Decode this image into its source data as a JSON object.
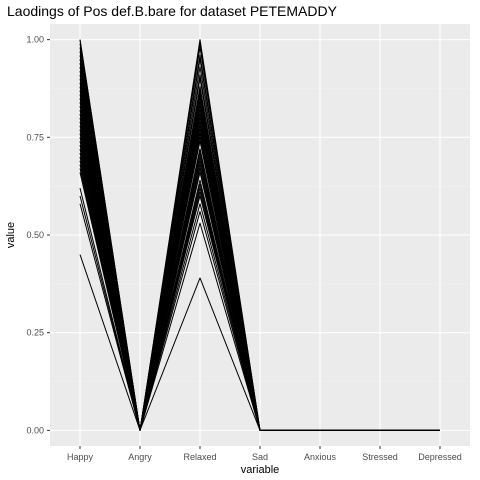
{
  "chart_data": {
    "type": "line",
    "title": "Laodings of Pos def.B.bare for dataset PETEMADDY",
    "xlabel": "variable",
    "ylabel": "value",
    "categories": [
      "Happy",
      "Angry",
      "Relaxed",
      "Sad",
      "Anxious",
      "Stressed",
      "Depressed"
    ],
    "ylim": [
      -0.04,
      1.04
    ],
    "yticks": [
      0.0,
      0.25,
      0.5,
      0.75,
      1.0
    ],
    "ytick_labels": [
      "0.00",
      "0.25",
      "0.50",
      "0.75",
      "1.00"
    ],
    "grid": true,
    "series": [
      {
        "values": [
          0.45,
          0,
          0.39,
          0,
          0,
          0,
          0
        ]
      },
      {
        "values": [
          0.58,
          0,
          0.53,
          0,
          0,
          0,
          0
        ]
      },
      {
        "values": [
          0.6,
          0,
          0.56,
          0,
          0,
          0,
          0
        ]
      },
      {
        "values": [
          0.62,
          0,
          0.58,
          0,
          0,
          0,
          0
        ]
      },
      {
        "values": [
          0.66,
          0,
          0.6,
          0,
          0,
          0,
          0
        ]
      },
      {
        "values": [
          0.67,
          0,
          0.62,
          0,
          0,
          0,
          0
        ]
      },
      {
        "values": [
          0.68,
          0,
          0.63,
          0,
          0,
          0,
          0
        ]
      },
      {
        "values": [
          0.7,
          0,
          0.64,
          0,
          0,
          0,
          0
        ]
      },
      {
        "values": [
          0.72,
          0,
          0.66,
          0,
          0,
          0,
          0
        ]
      },
      {
        "values": [
          0.74,
          0,
          0.68,
          0,
          0,
          0,
          0
        ]
      },
      {
        "values": [
          0.76,
          0,
          0.7,
          0,
          0,
          0,
          0
        ]
      },
      {
        "values": [
          0.78,
          0,
          0.72,
          0,
          0,
          0,
          0
        ]
      },
      {
        "values": [
          0.8,
          0,
          0.74,
          0,
          0,
          0,
          0
        ]
      },
      {
        "values": [
          0.82,
          0,
          0.76,
          0,
          0,
          0,
          0
        ]
      },
      {
        "values": [
          0.84,
          0,
          0.78,
          0,
          0,
          0,
          0
        ]
      },
      {
        "values": [
          0.86,
          0,
          0.8,
          0,
          0,
          0,
          0
        ]
      },
      {
        "values": [
          0.88,
          0,
          0.82,
          0,
          0,
          0,
          0
        ]
      },
      {
        "values": [
          0.9,
          0,
          0.84,
          0,
          0,
          0,
          0
        ]
      },
      {
        "values": [
          0.92,
          0,
          0.86,
          0,
          0,
          0,
          0
        ]
      },
      {
        "values": [
          0.94,
          0,
          0.88,
          0,
          0,
          0,
          0
        ]
      },
      {
        "values": [
          0.96,
          0,
          0.9,
          0,
          0,
          0,
          0
        ]
      },
      {
        "values": [
          0.98,
          0,
          0.93,
          0,
          0,
          0,
          0
        ]
      },
      {
        "values": [
          1.0,
          0,
          0.96,
          0,
          0,
          0,
          0
        ]
      },
      {
        "values": [
          0.69,
          0,
          0.71,
          0,
          0,
          0,
          0
        ]
      },
      {
        "values": [
          0.73,
          0,
          0.75,
          0,
          0,
          0,
          0
        ]
      },
      {
        "values": [
          0.77,
          0,
          0.79,
          0,
          0,
          0,
          0
        ]
      },
      {
        "values": [
          0.81,
          0,
          0.83,
          0,
          0,
          0,
          0
        ]
      },
      {
        "values": [
          0.85,
          0,
          0.87,
          0,
          0,
          0,
          0
        ]
      },
      {
        "values": [
          0.89,
          0,
          0.91,
          0,
          0,
          0,
          0
        ]
      },
      {
        "values": [
          0.93,
          0,
          0.95,
          0,
          0,
          0,
          0
        ]
      },
      {
        "values": [
          0.97,
          0,
          0.98,
          0,
          0,
          0,
          0
        ]
      },
      {
        "values": [
          0.99,
          0,
          1.0,
          0,
          0,
          0,
          0
        ]
      },
      {
        "values": [
          0.83,
          0,
          0.72,
          0,
          0,
          0,
          0
        ]
      },
      {
        "values": [
          0.87,
          0,
          0.77,
          0,
          0,
          0,
          0
        ]
      },
      {
        "values": [
          0.91,
          0,
          0.81,
          0,
          0,
          0,
          0
        ]
      },
      {
        "values": [
          0.95,
          0,
          0.85,
          0,
          0,
          0,
          0
        ]
      },
      {
        "values": [
          0.71,
          0,
          0.61,
          0,
          0,
          0,
          0
        ]
      },
      {
        "values": [
          0.75,
          0,
          0.67,
          0,
          0,
          0,
          0
        ]
      },
      {
        "values": [
          0.79,
          0,
          0.69,
          0,
          0,
          0,
          0
        ]
      },
      {
        "values": [
          1.0,
          0,
          0.99,
          0,
          0,
          0,
          0
        ]
      }
    ],
    "colors": {
      "panel": "#ebebeb",
      "grid_major": "#ffffff",
      "grid_minor": "#f2f2f2",
      "line": "#000000",
      "tick": "#333333",
      "tick_text": "#4d4d4d"
    }
  }
}
